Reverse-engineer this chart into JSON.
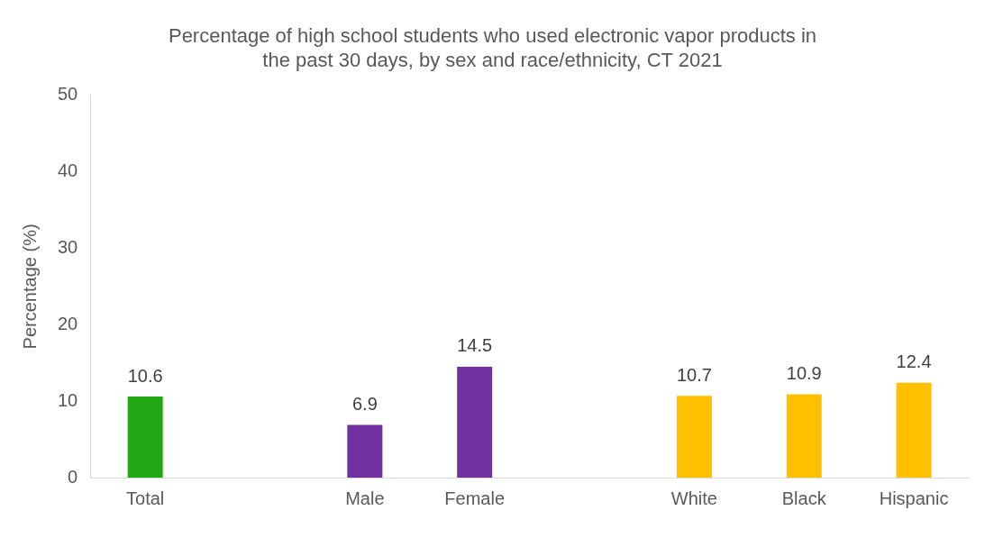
{
  "chart_data": {
    "type": "bar",
    "title": [
      "Percentage of high school students who used electronic vapor products in",
      "the past 30 days, by sex and race/ethnicity, CT 2021"
    ],
    "ylabel": "Percentage (%)",
    "categories": [
      "Total",
      null,
      "Male",
      "Female",
      null,
      "White",
      "Black",
      "Hispanic"
    ],
    "values": [
      10.6,
      null,
      6.9,
      14.5,
      null,
      10.7,
      10.9,
      12.4
    ],
    "colors": [
      "#22a814",
      null,
      "#7030a0",
      "#7030a0",
      null,
      "#ffc000",
      "#ffc000",
      "#ffc000"
    ],
    "ylim": [
      0,
      50
    ],
    "yticks": [
      0,
      10,
      20,
      30,
      40,
      50
    ],
    "grid": false,
    "legend": false,
    "data_labels": true
  }
}
